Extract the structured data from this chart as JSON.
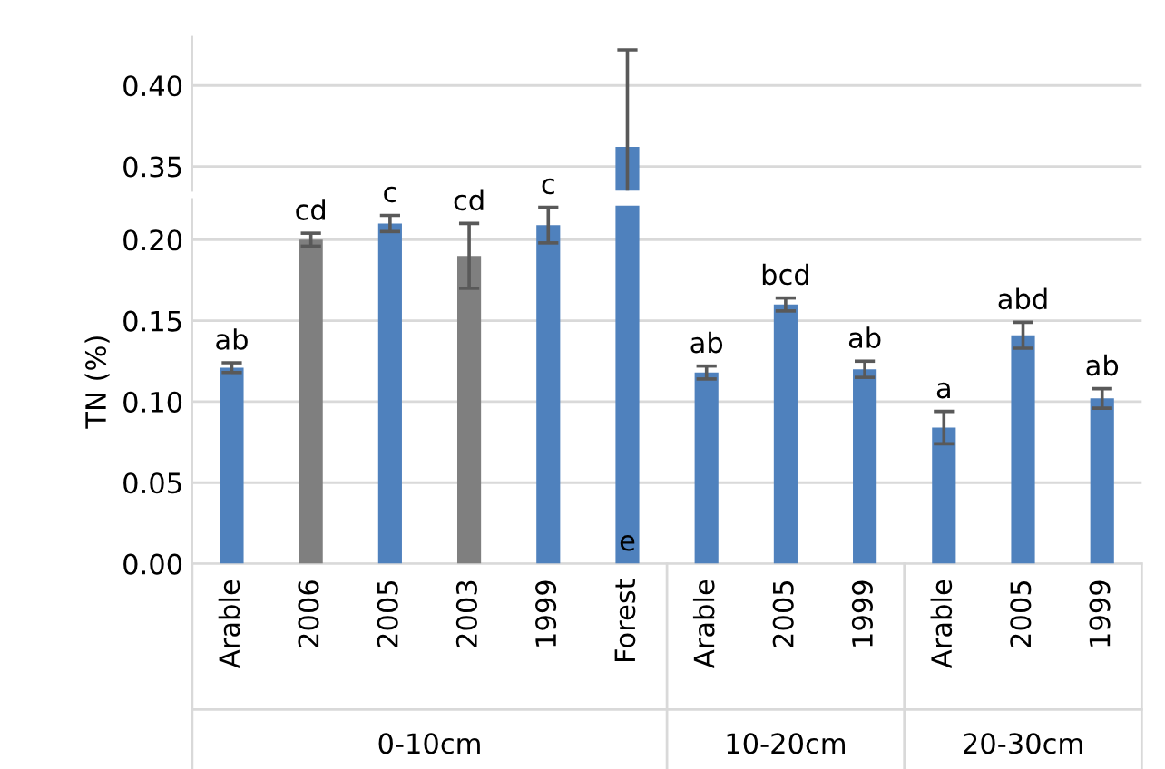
{
  "chart_data": [
    {
      "type": "bar",
      "categories": [
        null,
        null,
        null,
        null,
        null,
        null,
        null,
        null,
        null,
        null,
        null,
        null
      ],
      "values": [
        null,
        null,
        null,
        null,
        null,
        0.362,
        null,
        null,
        null,
        null,
        null,
        null
      ],
      "errors": [
        null,
        null,
        null,
        null,
        null,
        0.06,
        null,
        null,
        null,
        null,
        null,
        null
      ],
      "colors": [
        "#4f81bd",
        "#7f7f7f",
        "#4f81bd",
        "#7f7f7f",
        "#4f81bd",
        "#4f81bd",
        "#4f81bd",
        "#4f81bd",
        "#4f81bd",
        "#4f81bd",
        "#4f81bd",
        "#4f81bd"
      ],
      "ylim": [
        0.335,
        0.43
      ],
      "yticks": [
        {
          "value": 0.35,
          "label": "0.35"
        },
        {
          "value": 0.4,
          "label": "0.40"
        }
      ],
      "grid": "y",
      "tick_labels": "y"
    },
    {
      "type": "bar",
      "ylabel": "TN (%)",
      "categories": [
        "Arable",
        "2006",
        "2005",
        "2003",
        "1999",
        "Forest",
        "Arable",
        "2005",
        "1999",
        "Arable",
        "2005",
        "1999"
      ],
      "values": [
        0.121,
        0.2,
        0.21,
        0.19,
        0.209,
        0.221,
        0.118,
        0.16,
        0.12,
        0.084,
        0.141,
        0.102
      ],
      "errors": [
        0.003,
        0.004,
        0.005,
        0.02,
        0.011,
        null,
        0.004,
        0.004,
        0.005,
        0.01,
        0.008,
        0.006
      ],
      "colors": [
        "#4f81bd",
        "#7f7f7f",
        "#4f81bd",
        "#7f7f7f",
        "#4f81bd",
        "#4f81bd",
        "#4f81bd",
        "#4f81bd",
        "#4f81bd",
        "#4f81bd",
        "#4f81bd",
        "#4f81bd"
      ],
      "ylim": [
        0,
        0.225
      ],
      "yticks": [
        {
          "value": 0,
          "label": "0.00"
        },
        {
          "value": 0.05,
          "label": "0.05"
        },
        {
          "value": 0.1,
          "label": "0.10"
        },
        {
          "value": 0.15,
          "label": "0.15"
        },
        {
          "value": 0.2,
          "label": "0.20"
        }
      ],
      "grid": "y",
      "annotations": [
        "ab",
        "cd",
        "c",
        "cd",
        "c",
        "e",
        "ab",
        "bcd",
        "ab",
        "a",
        "abd",
        "ab",
        "0-10cm",
        "10-20cm",
        "20-30cm"
      ]
    }
  ]
}
